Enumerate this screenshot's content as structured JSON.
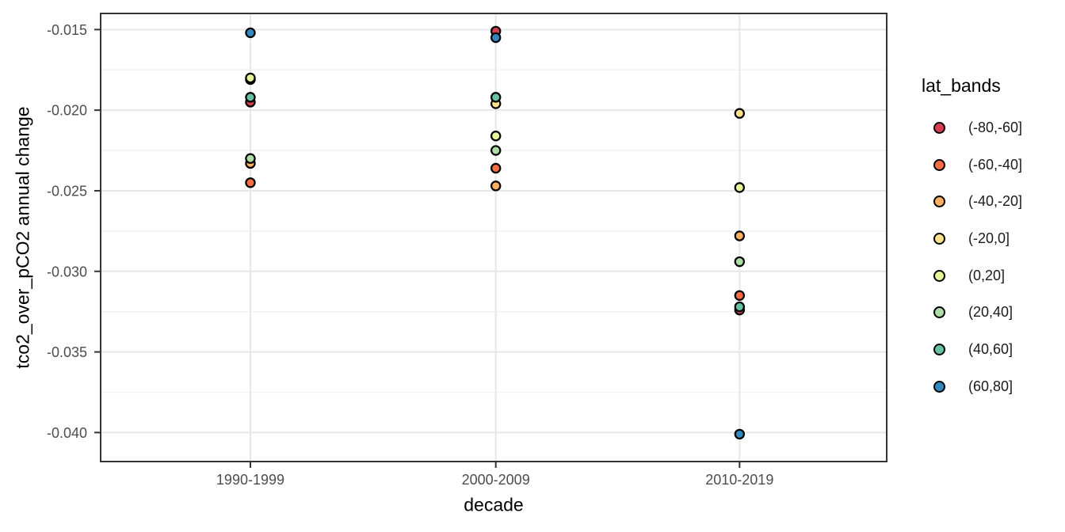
{
  "figure": {
    "background": "#ffffff",
    "panel_border_color": "#333333",
    "grid_major_color": "#e7e7e7",
    "grid_minor_color": "#f2f2f2",
    "tick_color": "#333333",
    "tick_label_color": "#4d4d4d",
    "point_outline_color": "#000000"
  },
  "chart_data": {
    "type": "scatter",
    "title": "",
    "xlabel": "decade",
    "ylabel": "tco2_over_pCO2 annual change",
    "categories": [
      "1990-1999",
      "2000-2009",
      "2010-2019"
    ],
    "y_ticks": [
      -0.015,
      -0.02,
      -0.025,
      -0.03,
      -0.035,
      -0.04
    ],
    "y_tick_labels": [
      "-0.015",
      "-0.020",
      "-0.025",
      "-0.030",
      "-0.035",
      "-0.040"
    ],
    "ylim": [
      -0.0418,
      -0.014
    ],
    "grid": true,
    "legend_position": "right",
    "legend_title": "lat_bands",
    "series": [
      {
        "name": "(-80,-60]",
        "color": "#d53e4f",
        "values": [
          -0.0195,
          -0.0151,
          -0.0324
        ]
      },
      {
        "name": "(-60,-40]",
        "color": "#f46d43",
        "values": [
          -0.0245,
          -0.0236,
          -0.0315
        ]
      },
      {
        "name": "(-40,-20]",
        "color": "#fdae61",
        "values": [
          -0.0233,
          -0.0247,
          -0.0278
        ]
      },
      {
        "name": "(-20,0]",
        "color": "#fee08b",
        "values": [
          -0.0181,
          -0.0196,
          -0.0202
        ]
      },
      {
        "name": "(0,20]",
        "color": "#e6f598",
        "values": [
          -0.018,
          -0.0216,
          -0.0248
        ]
      },
      {
        "name": "(20,40]",
        "color": "#abdda4",
        "values": [
          -0.023,
          -0.0225,
          -0.0294
        ]
      },
      {
        "name": "(40,60]",
        "color": "#66c2a5",
        "values": [
          -0.0192,
          -0.0192,
          -0.0322
        ]
      },
      {
        "name": "(60,80]",
        "color": "#3288bd",
        "values": [
          -0.0152,
          -0.0155,
          -0.0401
        ]
      }
    ]
  }
}
